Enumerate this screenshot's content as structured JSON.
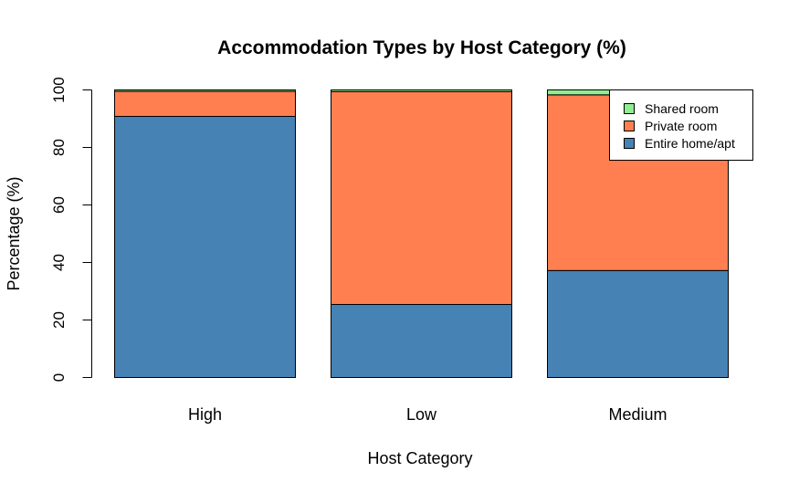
{
  "chart_data": {
    "type": "bar",
    "stacked": true,
    "title": "Accommodation Types by Host Category (%)",
    "xlabel": "Host Category",
    "ylabel": "Percentage (%)",
    "categories": [
      "High",
      "Low",
      "Medium"
    ],
    "ylim": [
      0,
      100
    ],
    "yticks": [
      "0",
      "20",
      "40",
      "60",
      "80",
      "100"
    ],
    "grid": false,
    "legend_position": "top-right",
    "series": [
      {
        "name": "Entire home/apt",
        "color": "#4682B4",
        "values": [
          90.8,
          25.4,
          37.2
        ]
      },
      {
        "name": "Private room",
        "color": "#FF7F50",
        "values": [
          8.7,
          74.0,
          61.1
        ]
      },
      {
        "name": "Shared room",
        "color": "#90EE90",
        "values": [
          0.5,
          0.6,
          1.7
        ]
      }
    ],
    "legend_order": [
      "Shared room",
      "Private room",
      "Entire home/apt"
    ]
  }
}
